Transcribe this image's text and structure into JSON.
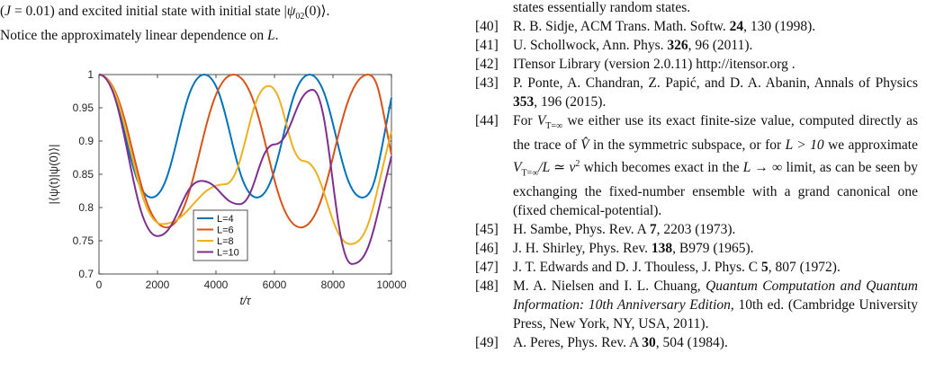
{
  "caption": {
    "line1_pre": "(",
    "line1_j": "J",
    "line1_mid": " = 0.01) and excited initial state with initial state |",
    "line1_psi": "ψ",
    "line1_sub": "02",
    "line1_post": "(0)⟩.",
    "line2_pre": "Notice the approximately linear dependence on ",
    "line2_L": "L",
    "line2_post": "."
  },
  "references": {
    "fragment": "states essentially random states.",
    "r40": {
      "num": "[40]",
      "text": "R. B. Sidje, ACM Trans. Math. Softw. ",
      "vol": "24",
      "rest": ", 130 (1998)."
    },
    "r41": {
      "num": "[41]",
      "text": "U. Schollwock, Ann. Phys. ",
      "vol": "326",
      "rest": ", 96 (2011)."
    },
    "r42": {
      "num": "[42]",
      "text": "ITensor Library (version 2.0.11) http://itensor.org ."
    },
    "r43": {
      "num": "[43]",
      "text": "P. Ponte, A. Chandran, Z. Papić, and D. A. Abanin, Annals of Physics ",
      "vol": "353",
      "rest": ", 196 (2015)."
    },
    "r44": {
      "num": "[44]",
      "p1": "For ",
      "p2": " we either use its exact finite-size value, computed directly as the trace of ",
      "p3": " in the symmetric subspace, or for ",
      "p4": " we approximate ",
      "p5": " which becomes exact in the ",
      "p6": " limit, as can be seen by exchanging the fixed-number ensemble with a grand canonical one (fixed chemical-potential).",
      "v": "V",
      "vsub": "T=∞",
      "vhat": "V̂",
      "lgt": "L > 10",
      "approx": "/L ≃ ν",
      "approx_sup": "2",
      "limit": "L → ∞"
    },
    "r45": {
      "num": "[45]",
      "text": "H. Sambe, Phys. Rev. A ",
      "vol": "7",
      "rest": ", 2203 (1973)."
    },
    "r46": {
      "num": "[46]",
      "text": "J. H. Shirley, Phys. Rev. ",
      "vol": "138",
      "rest": ", B979 (1965)."
    },
    "r47": {
      "num": "[47]",
      "text": "J. T. Edwards and D. J. Thouless,  J. Phys. C ",
      "vol": "5",
      "rest": ", 807 (1972)."
    },
    "r48": {
      "num": "[48]",
      "text": "M. A. Nielsen and I. L. Chuang, ",
      "title": "Quantum Computation and Quantum Information: 10th Anniversary Edition",
      "rest": ", 10th ed. (Cambridge University Press, New York, NY, USA, 2011)."
    },
    "r49": {
      "num": "[49]",
      "text": "A. Peres, Phys. Rev. A ",
      "vol": "30",
      "rest": ", 504 (1984)."
    }
  },
  "chart_data": {
    "type": "line",
    "xlabel": "t/τ",
    "ylabel": "|⟨ψ(t)|ψ(0)⟩|",
    "xlim": [
      0,
      10000
    ],
    "ylim": [
      0.7,
      1.0
    ],
    "xticks": [
      "0",
      "2000",
      "4000",
      "6000",
      "8000",
      "10000"
    ],
    "yticks": [
      "0.7",
      "0.75",
      "0.8",
      "0.85",
      "0.9",
      "0.95",
      "1"
    ],
    "legend_position": "bottom-left",
    "grid": false,
    "series": [
      {
        "name": "L=4",
        "color": "#0072BD",
        "x": [
          0,
          1800,
          3600,
          5400,
          7200,
          9000,
          10000
        ],
        "y": [
          1.0,
          0.815,
          1.0,
          0.815,
          1.0,
          0.815,
          0.965
        ]
      },
      {
        "name": "L=6",
        "color": "#D95319",
        "x": [
          0,
          2300,
          4600,
          6900,
          9200,
          10000
        ],
        "y": [
          1.0,
          0.77,
          1.0,
          0.77,
          1.0,
          0.88
        ]
      },
      {
        "name": "L=8",
        "color": "#EDB120",
        "x": [
          0,
          2150,
          4300,
          5800,
          7000,
          8600,
          10000
        ],
        "y": [
          1.0,
          0.775,
          0.835,
          0.983,
          0.87,
          0.745,
          0.915
        ]
      },
      {
        "name": "L=10",
        "color": "#7E2F8E",
        "x": [
          0,
          2000,
          3500,
          4800,
          6000,
          7300,
          8650,
          10000
        ],
        "y": [
          1.0,
          0.757,
          0.84,
          0.805,
          0.895,
          0.977,
          0.715,
          0.877
        ]
      }
    ]
  }
}
